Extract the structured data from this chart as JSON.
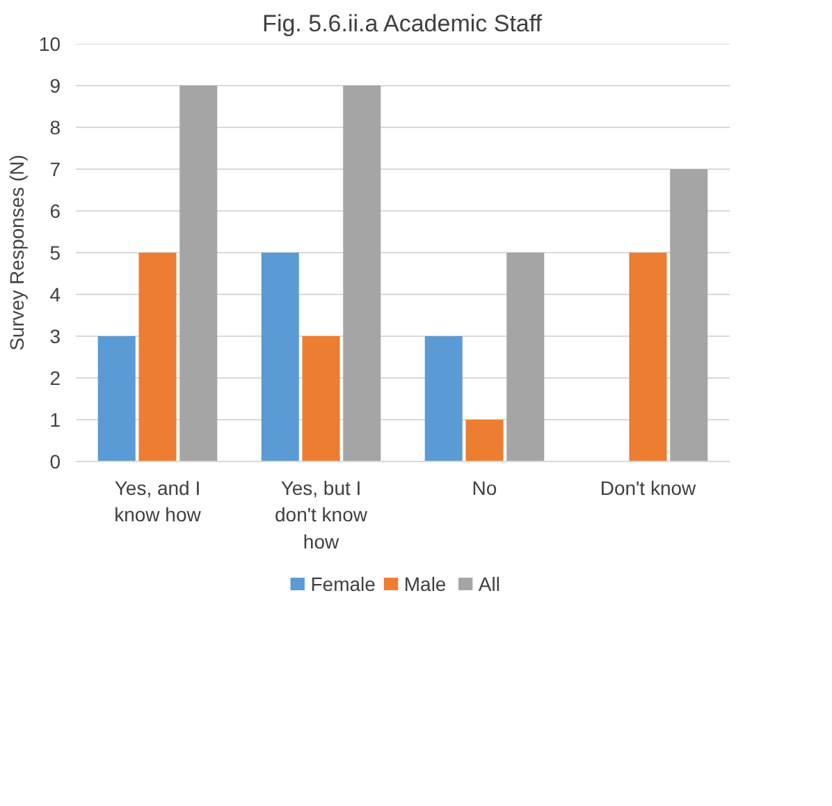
{
  "chart_data": {
    "type": "bar",
    "title": "Fig. 5.6.ii.a Academic Staff",
    "ylabel": "Survey Responses (N)",
    "categories": [
      "Yes, and I know how",
      "Yes, but I don't know how",
      "No",
      "Don't know"
    ],
    "series": [
      {
        "name": "Female",
        "color": "#5b9bd5",
        "values": [
          3,
          5,
          3,
          0
        ]
      },
      {
        "name": "Male",
        "color": "#ed7d31",
        "values": [
          5,
          3,
          1,
          5
        ]
      },
      {
        "name": "All",
        "color": "#a5a5a5",
        "values": [
          9,
          9,
          5,
          7
        ]
      }
    ],
    "ylim": [
      0,
      10
    ],
    "yticks": [
      0,
      1,
      2,
      3,
      4,
      5,
      6,
      7,
      8,
      9,
      10
    ],
    "grid": "y",
    "legend": "bottom"
  }
}
